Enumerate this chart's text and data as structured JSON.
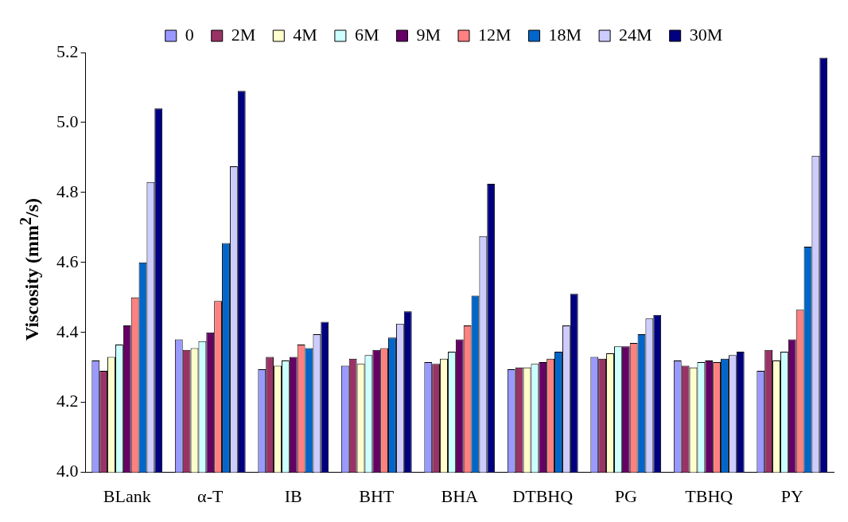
{
  "chart_data": {
    "type": "bar",
    "ylabel": "Viscosity (mm$^{2}$/s)",
    "categories": [
      "BLank",
      "α-T",
      "IB",
      "BHT",
      "BHA",
      "DTBHQ",
      "PG",
      "TBHQ",
      "PY"
    ],
    "series": [
      {
        "name": "0",
        "color": "#9999ff",
        "values": [
          4.32,
          4.38,
          4.295,
          4.305,
          4.315,
          4.295,
          4.33,
          4.32,
          4.29
        ]
      },
      {
        "name": "2M",
        "color": "#993366",
        "values": [
          4.29,
          4.35,
          4.33,
          4.325,
          4.31,
          4.3,
          4.325,
          4.305,
          4.35
        ]
      },
      {
        "name": "4M",
        "color": "#ffffcc",
        "values": [
          4.33,
          4.355,
          4.305,
          4.31,
          4.325,
          4.3,
          4.34,
          4.3,
          4.32
        ]
      },
      {
        "name": "6M",
        "color": "#ccffff",
        "values": [
          4.365,
          4.375,
          4.32,
          4.335,
          4.345,
          4.31,
          4.36,
          4.315,
          4.345
        ]
      },
      {
        "name": "9M",
        "color": "#660066",
        "values": [
          4.42,
          4.4,
          4.33,
          4.35,
          4.38,
          4.315,
          4.36,
          4.32,
          4.38
        ]
      },
      {
        "name": "12M",
        "color": "#ff8080",
        "values": [
          4.5,
          4.49,
          4.365,
          4.355,
          4.42,
          4.325,
          4.37,
          4.315,
          4.465
        ]
      },
      {
        "name": "18M",
        "color": "#0066cc",
        "values": [
          4.6,
          4.655,
          4.355,
          4.385,
          4.505,
          4.345,
          4.395,
          4.325,
          4.645
        ]
      },
      {
        "name": "24M",
        "color": "#ccccff",
        "values": [
          4.83,
          4.875,
          4.395,
          4.425,
          4.675,
          4.42,
          4.44,
          4.335,
          4.905
        ]
      },
      {
        "name": "30M",
        "color": "#000080",
        "values": [
          5.04,
          5.09,
          4.43,
          4.46,
          4.825,
          4.51,
          4.45,
          4.345,
          5.185
        ]
      }
    ],
    "ylim": [
      4.0,
      5.2
    ],
    "yticks": [
      {
        "value": 4.0,
        "label": "4.0"
      },
      {
        "value": 4.2,
        "label": "4.2"
      },
      {
        "value": 4.4,
        "label": "4.4"
      },
      {
        "value": 4.6,
        "label": "4.6"
      },
      {
        "value": 4.8,
        "label": "4.8"
      },
      {
        "value": 5.0,
        "label": "5.0"
      },
      {
        "value": 5.2,
        "label": "5.2"
      }
    ],
    "grid": false,
    "legend": "top"
  }
}
